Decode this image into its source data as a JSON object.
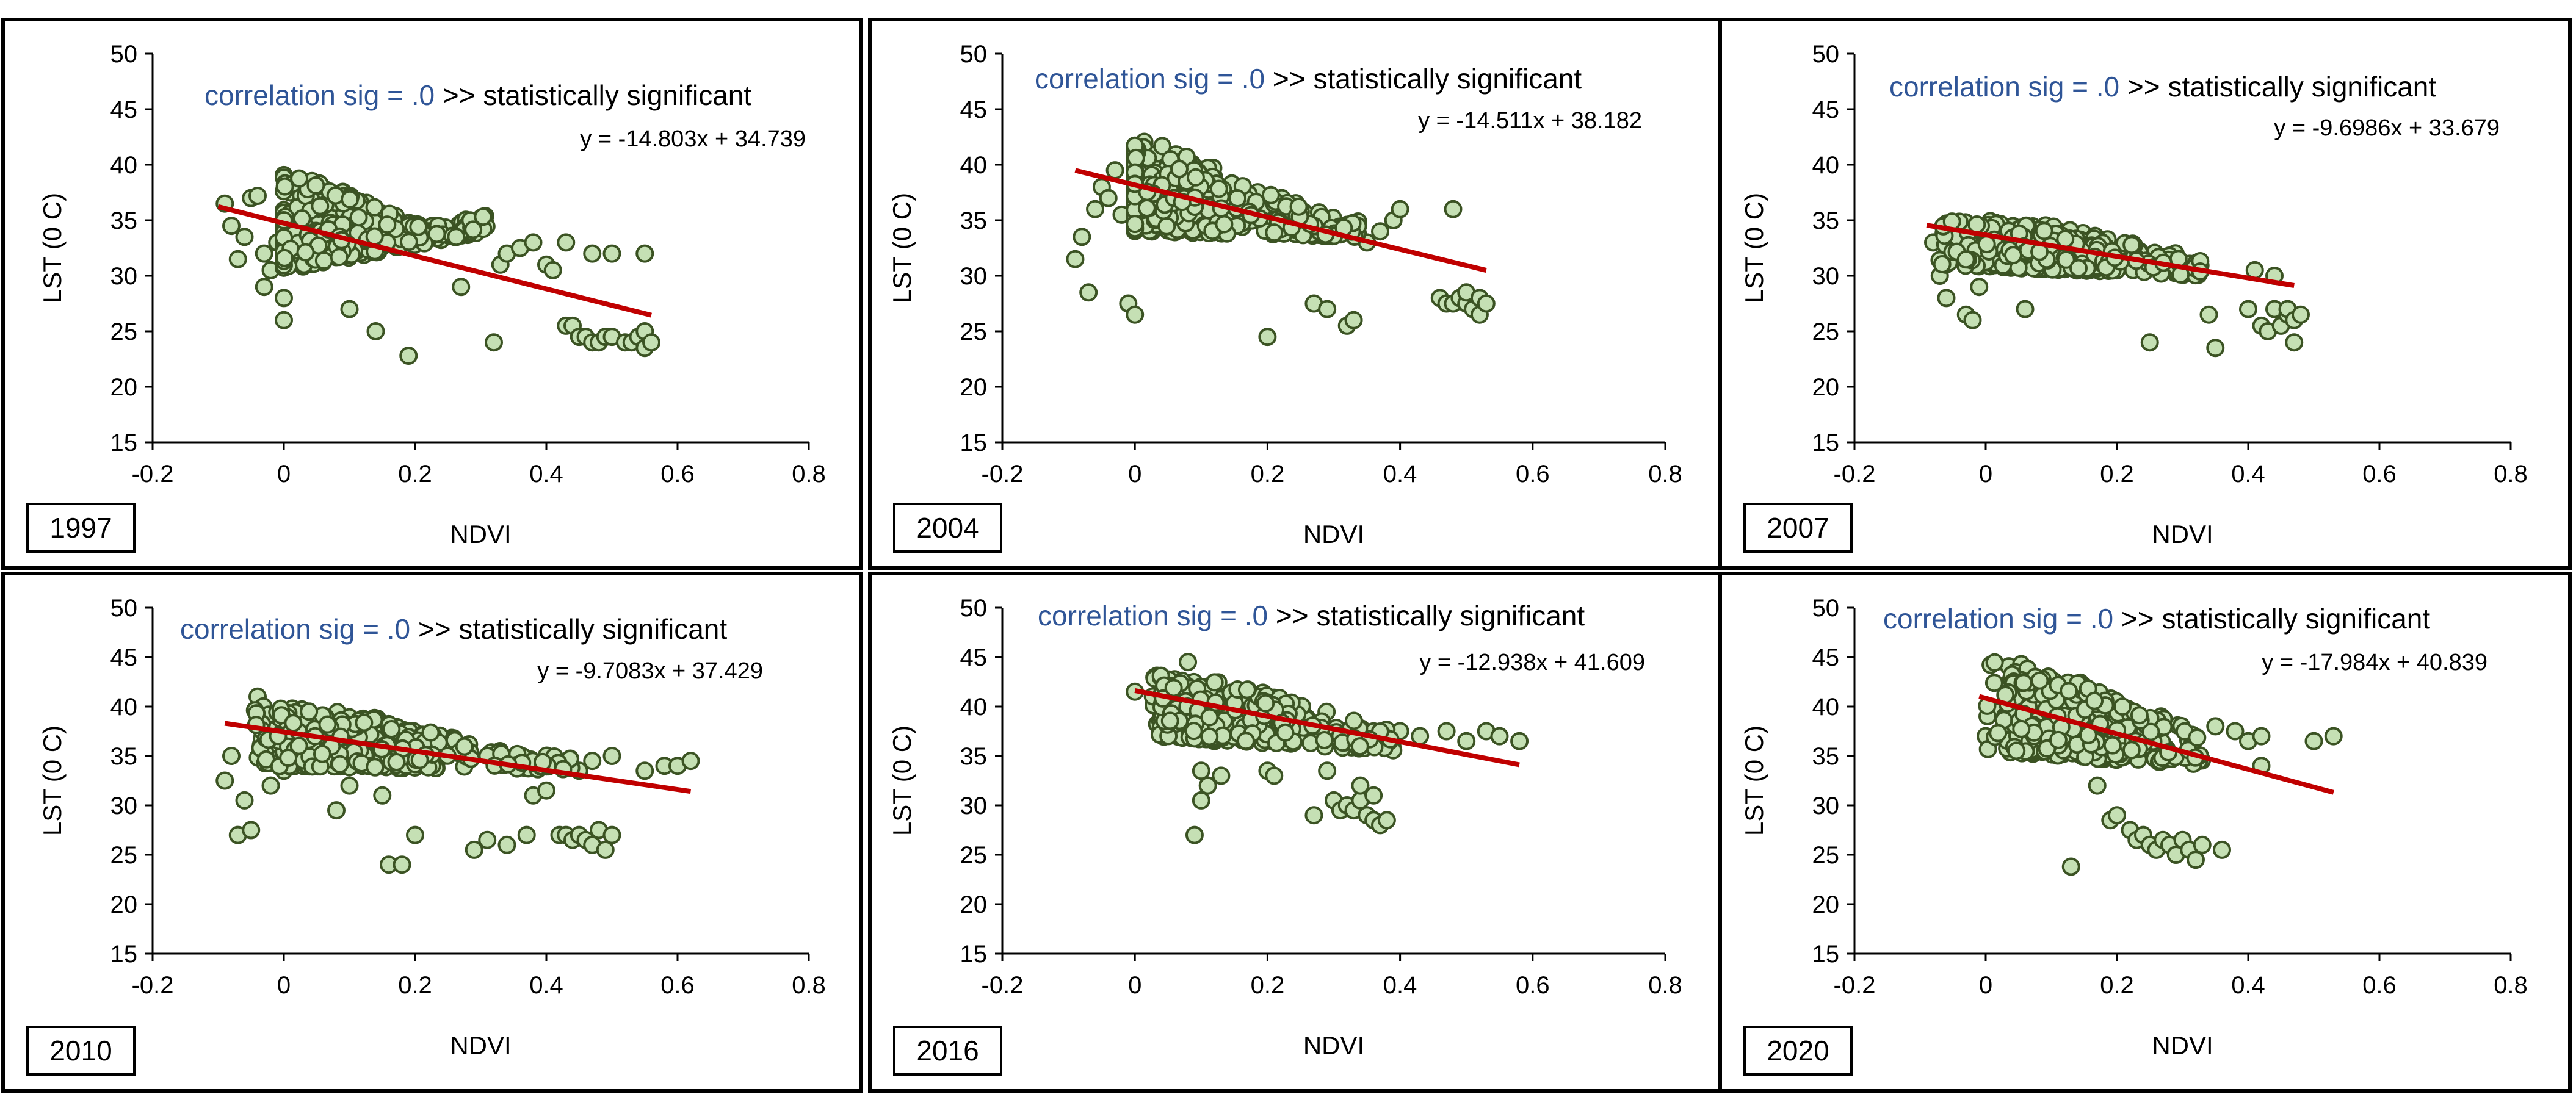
{
  "colors": {
    "marker_fill": "#c5e0b4",
    "marker_stroke": "#3b5323",
    "trendline": "#c00000",
    "annotation_blue": "#2f5597",
    "panel_border": "#000000"
  },
  "chart_data": [
    {
      "type": "scatter",
      "year": "1997",
      "xlabel": "NDVI",
      "ylabel": "LST (0 C)",
      "xlim": [
        -0.2,
        0.8
      ],
      "ylim": [
        15,
        50
      ],
      "xticks": [
        "-0.2",
        "0",
        "0.2",
        "0.4",
        "0.6",
        "0.8"
      ],
      "yticks": [
        "15",
        "20",
        "25",
        "30",
        "35",
        "40",
        "45",
        "50"
      ],
      "sig_prefix": "correlation sig = .0",
      "sig_suffix": " >> statistically significant",
      "equation": "y = -14.803x + 34.739",
      "trend": {
        "slope": -14.803,
        "intercept": 34.739,
        "x_range": [
          -0.1,
          0.56
        ]
      },
      "points": [
        [
          -0.09,
          36.5
        ],
        [
          -0.08,
          34.5
        ],
        [
          -0.07,
          31.5
        ],
        [
          -0.06,
          33.5
        ],
        [
          -0.05,
          37.0
        ],
        [
          -0.04,
          37.2
        ],
        [
          -0.03,
          29.0
        ],
        [
          -0.03,
          32.0
        ],
        [
          -0.02,
          30.5
        ],
        [
          -0.01,
          33.0
        ],
        [
          0.0,
          26.0
        ],
        [
          0.0,
          28.0
        ],
        [
          0.1,
          27.0
        ],
        [
          0.14,
          25.0
        ],
        [
          0.19,
          22.8
        ],
        [
          0.27,
          29.0
        ],
        [
          0.32,
          24.0
        ],
        [
          0.33,
          31.0
        ],
        [
          0.34,
          32.0
        ],
        [
          0.36,
          32.5
        ],
        [
          0.38,
          33.0
        ],
        [
          0.4,
          31.0
        ],
        [
          0.41,
          30.5
        ],
        [
          0.43,
          25.5
        ],
        [
          0.44,
          25.5
        ],
        [
          0.45,
          24.5
        ],
        [
          0.46,
          24.5
        ],
        [
          0.47,
          24.0
        ],
        [
          0.48,
          24.0
        ],
        [
          0.49,
          24.5
        ],
        [
          0.5,
          24.5
        ],
        [
          0.5,
          32.0
        ],
        [
          0.52,
          24.0
        ],
        [
          0.53,
          24.0
        ],
        [
          0.54,
          24.5
        ],
        [
          0.55,
          23.5
        ],
        [
          0.55,
          25.0
        ],
        [
          0.55,
          32.0
        ],
        [
          0.56,
          24.0
        ],
        [
          0.43,
          33.0
        ],
        [
          0.47,
          32.0
        ]
      ],
      "cloud": {
        "x_range": [
          0.0,
          0.31
        ],
        "x_peak": 0.06,
        "y_base": [
          30.5,
          34.0
        ],
        "y_top": [
          39.5,
          33.5
        ],
        "n": 360,
        "seed": 11
      }
    },
    {
      "type": "scatter",
      "year": "2004",
      "xlabel": "NDVI",
      "ylabel": "LST (0 C)",
      "xlim": [
        -0.2,
        0.8
      ],
      "ylim": [
        15,
        50
      ],
      "xticks": [
        "-0.2",
        "0",
        "0.2",
        "0.4",
        "0.6",
        "0.8"
      ],
      "yticks": [
        "15",
        "20",
        "25",
        "30",
        "35",
        "40",
        "45",
        "50"
      ],
      "sig_prefix": "correlation sig = .0",
      "sig_suffix": " >> statistically significant",
      "equation": "y = -14.511x + 38.182",
      "trend": {
        "slope": -14.511,
        "intercept": 38.182,
        "x_range": [
          -0.09,
          0.53
        ]
      },
      "points": [
        [
          -0.09,
          31.5
        ],
        [
          -0.08,
          33.5
        ],
        [
          -0.07,
          28.5
        ],
        [
          -0.06,
          36.0
        ],
        [
          -0.05,
          38.0
        ],
        [
          -0.04,
          37.0
        ],
        [
          -0.03,
          39.5
        ],
        [
          -0.02,
          35.5
        ],
        [
          -0.01,
          27.5
        ],
        [
          0.0,
          26.5
        ],
        [
          0.2,
          24.5
        ],
        [
          0.27,
          27.5
        ],
        [
          0.29,
          27.0
        ],
        [
          0.32,
          25.5
        ],
        [
          0.33,
          26.0
        ],
        [
          0.35,
          33.0
        ],
        [
          0.37,
          34.0
        ],
        [
          0.39,
          35.0
        ],
        [
          0.4,
          36.0
        ],
        [
          0.46,
          28.0
        ],
        [
          0.47,
          27.5
        ],
        [
          0.48,
          36.0
        ],
        [
          0.48,
          27.5
        ],
        [
          0.49,
          28.0
        ],
        [
          0.5,
          27.5
        ],
        [
          0.5,
          28.5
        ],
        [
          0.51,
          27.0
        ],
        [
          0.52,
          26.5
        ],
        [
          0.52,
          28.0
        ],
        [
          0.53,
          27.5
        ]
      ],
      "cloud": {
        "x_range": [
          0.0,
          0.34
        ],
        "x_peak": 0.04,
        "y_base": [
          34.0,
          33.5
        ],
        "y_top": [
          42.5,
          36.0
        ],
        "n": 380,
        "seed": 23
      }
    },
    {
      "type": "scatter",
      "year": "2007",
      "xlabel": "NDVI",
      "ylabel": "LST (0 C)",
      "xlim": [
        -0.2,
        0.8
      ],
      "ylim": [
        15,
        50
      ],
      "xticks": [
        "-0.2",
        "0",
        "0.2",
        "0.4",
        "0.6",
        "0.8"
      ],
      "yticks": [
        "15",
        "20",
        "25",
        "30",
        "35",
        "40",
        "45",
        "50"
      ],
      "sig_prefix": "correlation sig = .0",
      "sig_suffix": " >> statistically significant",
      "equation": "y = -9.6986x + 33.679",
      "trend": {
        "slope": -9.6986,
        "intercept": 33.679,
        "x_range": [
          -0.09,
          0.47
        ]
      },
      "points": [
        [
          -0.08,
          33.0
        ],
        [
          -0.07,
          30.0
        ],
        [
          -0.06,
          28.0
        ],
        [
          -0.05,
          32.5
        ],
        [
          -0.04,
          31.5
        ],
        [
          -0.03,
          26.5
        ],
        [
          -0.02,
          26.0
        ],
        [
          -0.01,
          29.0
        ],
        [
          0.06,
          27.0
        ],
        [
          0.25,
          24.0
        ],
        [
          0.34,
          26.5
        ],
        [
          0.35,
          23.5
        ],
        [
          0.4,
          27.0
        ],
        [
          0.41,
          30.5
        ],
        [
          0.42,
          25.5
        ],
        [
          0.43,
          25.0
        ],
        [
          0.44,
          27.0
        ],
        [
          0.44,
          30.0
        ],
        [
          0.45,
          25.5
        ],
        [
          0.46,
          26.5
        ],
        [
          0.46,
          27.0
        ],
        [
          0.47,
          24.0
        ],
        [
          0.47,
          26.0
        ],
        [
          0.48,
          26.5
        ]
      ],
      "cloud": {
        "x_range": [
          -0.08,
          0.33
        ],
        "x_peak": 0.08,
        "y_base": [
          31.0,
          30.0
        ],
        "y_top": [
          36.0,
          33.0
        ],
        "n": 360,
        "seed": 37
      }
    },
    {
      "type": "scatter",
      "year": "2010",
      "xlabel": "NDVI",
      "ylabel": "LST (0 C)",
      "xlim": [
        -0.2,
        0.8
      ],
      "ylim": [
        15,
        50
      ],
      "xticks": [
        "-0.2",
        "0",
        "0.2",
        "0.4",
        "0.6",
        "0.8"
      ],
      "yticks": [
        "15",
        "20",
        "25",
        "30",
        "35",
        "40",
        "45",
        "50"
      ],
      "sig_prefix": "correlation sig = .0",
      "sig_suffix": " >> statistically significant",
      "equation": "y = -9.7083x + 37.429",
      "trend": {
        "slope": -9.7083,
        "intercept": 37.429,
        "x_range": [
          -0.09,
          0.62
        ]
      },
      "points": [
        [
          -0.09,
          32.5
        ],
        [
          -0.08,
          35.0
        ],
        [
          -0.07,
          27.0
        ],
        [
          -0.06,
          30.5
        ],
        [
          -0.05,
          27.5
        ],
        [
          -0.04,
          41.0
        ],
        [
          -0.03,
          36.0
        ],
        [
          -0.02,
          32.0
        ],
        [
          0.0,
          33.5
        ],
        [
          0.08,
          29.5
        ],
        [
          0.1,
          32.0
        ],
        [
          0.15,
          31.0
        ],
        [
          0.16,
          24.0
        ],
        [
          0.18,
          24.0
        ],
        [
          0.2,
          27.0
        ],
        [
          0.29,
          25.5
        ],
        [
          0.31,
          26.5
        ],
        [
          0.34,
          26.0
        ],
        [
          0.37,
          27.0
        ],
        [
          0.38,
          31.0
        ],
        [
          0.4,
          31.5
        ],
        [
          0.42,
          27.0
        ],
        [
          0.43,
          27.0
        ],
        [
          0.44,
          26.5
        ],
        [
          0.45,
          27.0
        ],
        [
          0.46,
          26.5
        ],
        [
          0.47,
          26.0
        ],
        [
          0.48,
          27.5
        ],
        [
          0.49,
          25.5
        ],
        [
          0.5,
          27.0
        ],
        [
          0.45,
          33.5
        ],
        [
          0.47,
          34.5
        ],
        [
          0.5,
          35.0
        ],
        [
          0.55,
          33.5
        ],
        [
          0.58,
          34.0
        ],
        [
          0.6,
          34.0
        ],
        [
          0.62,
          34.5
        ]
      ],
      "cloud": {
        "x_range": [
          -0.05,
          0.44
        ],
        "x_peak": 0.1,
        "y_base": [
          34.0,
          33.5
        ],
        "y_top": [
          41.0,
          36.0
        ],
        "n": 380,
        "seed": 51
      }
    },
    {
      "type": "scatter",
      "year": "2016",
      "xlabel": "NDVI",
      "ylabel": "LST (0 C)",
      "xlim": [
        -0.2,
        0.8
      ],
      "ylim": [
        15,
        50
      ],
      "xticks": [
        "-0.2",
        "0",
        "0.2",
        "0.4",
        "0.6",
        "0.8"
      ],
      "yticks": [
        "15",
        "20",
        "25",
        "30",
        "35",
        "40",
        "45",
        "50"
      ],
      "sig_prefix": "correlation sig = .0",
      "sig_suffix": " >> statistically significant",
      "equation": "y = -12.938x + 41.609",
      "trend": {
        "slope": -12.938,
        "intercept": 41.609,
        "x_range": [
          0.0,
          0.58
        ]
      },
      "points": [
        [
          0.0,
          41.5
        ],
        [
          0.08,
          44.5
        ],
        [
          0.09,
          27.0
        ],
        [
          0.1,
          30.5
        ],
        [
          0.1,
          33.5
        ],
        [
          0.11,
          32.0
        ],
        [
          0.12,
          36.5
        ],
        [
          0.13,
          33.0
        ],
        [
          0.2,
          33.5
        ],
        [
          0.21,
          33.0
        ],
        [
          0.27,
          29.0
        ],
        [
          0.29,
          33.5
        ],
        [
          0.3,
          30.5
        ],
        [
          0.31,
          29.5
        ],
        [
          0.32,
          30.0
        ],
        [
          0.33,
          29.5
        ],
        [
          0.34,
          30.5
        ],
        [
          0.35,
          29.0
        ],
        [
          0.36,
          28.5
        ],
        [
          0.37,
          28.0
        ],
        [
          0.38,
          28.5
        ],
        [
          0.34,
          32.0
        ],
        [
          0.36,
          31.0
        ],
        [
          0.4,
          37.5
        ],
        [
          0.43,
          37.0
        ],
        [
          0.47,
          37.5
        ],
        [
          0.5,
          36.5
        ],
        [
          0.53,
          37.5
        ],
        [
          0.55,
          37.0
        ],
        [
          0.58,
          36.5
        ]
      ],
      "cloud": {
        "x_range": [
          0.02,
          0.4
        ],
        "x_peak": 0.14,
        "y_base": [
          37.0,
          35.5
        ],
        "y_top": [
          44.0,
          39.0
        ],
        "n": 360,
        "seed": 67
      }
    },
    {
      "type": "scatter",
      "year": "2020",
      "xlabel": "NDVI",
      "ylabel": "LST (0 C)",
      "xlim": [
        -0.2,
        0.8
      ],
      "ylim": [
        15,
        50
      ],
      "xticks": [
        "-0.2",
        "0",
        "0.2",
        "0.4",
        "0.6",
        "0.8"
      ],
      "yticks": [
        "15",
        "20",
        "25",
        "30",
        "35",
        "40",
        "45",
        "50"
      ],
      "sig_prefix": "correlation sig = .0",
      "sig_suffix": " >> statistically significant",
      "equation": "y = -17.984x + 40.839",
      "trend": {
        "slope": -17.984,
        "intercept": 40.839,
        "x_range": [
          -0.01,
          0.53
        ]
      },
      "points": [
        [
          0.0,
          37.0
        ],
        [
          0.02,
          39.5
        ],
        [
          0.04,
          41.5
        ],
        [
          0.13,
          23.8
        ],
        [
          0.17,
          32.0
        ],
        [
          0.19,
          28.5
        ],
        [
          0.2,
          29.0
        ],
        [
          0.22,
          27.5
        ],
        [
          0.23,
          26.5
        ],
        [
          0.24,
          27.0
        ],
        [
          0.25,
          26.0
        ],
        [
          0.26,
          25.5
        ],
        [
          0.27,
          26.5
        ],
        [
          0.28,
          26.0
        ],
        [
          0.29,
          25.0
        ],
        [
          0.3,
          26.5
        ],
        [
          0.31,
          25.5
        ],
        [
          0.32,
          24.5
        ],
        [
          0.33,
          26.0
        ],
        [
          0.36,
          25.5
        ],
        [
          0.35,
          38.0
        ],
        [
          0.38,
          37.5
        ],
        [
          0.4,
          36.5
        ],
        [
          0.42,
          34.0
        ],
        [
          0.42,
          37.0
        ],
        [
          0.5,
          36.5
        ],
        [
          0.53,
          37.0
        ]
      ],
      "cloud": {
        "x_range": [
          0.0,
          0.33
        ],
        "x_peak": 0.12,
        "y_base": [
          35.5,
          34.0
        ],
        "y_top": [
          46.0,
          38.5
        ],
        "n": 360,
        "seed": 83
      }
    }
  ]
}
